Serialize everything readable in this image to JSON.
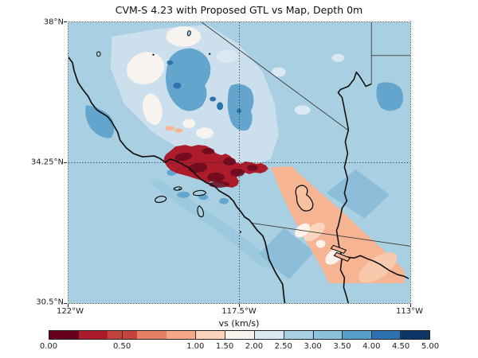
{
  "title": "CVM-S 4.23 with Proposed GTL vs Map, Depth 0m",
  "axes": {
    "y_ticks": [
      "38°N",
      "34.25°N",
      "30.5°N"
    ],
    "x_ticks": [
      "122°W",
      "117.5°W",
      "113°W"
    ]
  },
  "colorbar": {
    "label": "vs (km/s)",
    "tick_labels": [
      "0.00",
      "0.50",
      "1.00",
      "1.50",
      "2.00",
      "2.50",
      "3.00",
      "3.50",
      "4.00",
      "4.50",
      "5.00"
    ],
    "tick_values": [
      0,
      0.5,
      1,
      1.5,
      2,
      2.5,
      3,
      3.5,
      4,
      4.5,
      5
    ],
    "boundaries": [
      0,
      0.2,
      0.4,
      0.6,
      0.8,
      1.0,
      1.5,
      2.0,
      2.5,
      3.0,
      3.5,
      4.0,
      4.5,
      5.0
    ],
    "segment_colors": [
      "#67001f",
      "#ab1b2b",
      "#c5433e",
      "#e58063",
      "#f4a886",
      "#fad3ba",
      "#f8f2ec",
      "#dde9f1",
      "#a9cfe2",
      "#8ec1dc",
      "#569fc9",
      "#2c70b0",
      "#0b3666"
    ],
    "outline_color": "#222222"
  },
  "map": {
    "background_color": "#a9cfe2",
    "region_colors": {
      "pale_inland": "#cbdfec",
      "white_patches": "#f7f3ee",
      "medium_blue_blobs": "#64a5cd",
      "dark_blue_spots": "#2e72ae",
      "blue_tiles": "#8cbeda",
      "low_velocity_basin_red": "#ac1c2b",
      "basin_maroon_mottle": "#6b0a20",
      "salton_trough_salmon": "#f6b493",
      "coastline": "#111111",
      "state_borders": "#3a3a3a"
    },
    "line_features": [
      "coastline",
      "california-nevada-border",
      "nevada-utah-border",
      "utah-arizona-border",
      "us-mexico-border",
      "colorado-river",
      "channel-islands",
      "salton-sea-outline"
    ],
    "gridlines": {
      "horizontal_at": "34.25°N",
      "vertical_at": "117.5°W",
      "style": "dotted"
    }
  },
  "chart_data": {
    "type": "heatmap",
    "title": "CVM-S 4.23 with Proposed GTL vs Map, Depth 0m",
    "colorbar_label": "vs (km/s)",
    "value_range": [
      0,
      5
    ],
    "colorbar_tick_values": [
      0,
      0.5,
      1,
      1.5,
      2,
      2.5,
      3,
      3.5,
      4,
      4.5,
      5
    ],
    "colorbar_boundaries": [
      0,
      0.2,
      0.4,
      0.6,
      0.8,
      1.0,
      1.5,
      2.0,
      2.5,
      3.0,
      3.5,
      4.0,
      4.5,
      5.0
    ],
    "x_axis": {
      "tick_labels": [
        "122°W",
        "117.5°W",
        "113°W"
      ],
      "range_deg_west": [
        122,
        113
      ]
    },
    "y_axis": {
      "tick_labels": [
        "38°N",
        "34.25°N",
        "30.5°N"
      ],
      "range_deg_north": [
        30.5,
        38
      ]
    },
    "grid": "dotted gridlines at 117.5°W and 34.25°N",
    "legend_position": "horizontal colorbar below map",
    "regions": [
      {
        "name": "ocean-and-default-background",
        "approx_vs_km_s": 3.0
      },
      {
        "name": "los-angeles-basin-low-velocity-blob",
        "approx_vs_km_s": 0.3
      },
      {
        "name": "basin-maroon-mottling",
        "approx_vs_km_s": 0.1
      },
      {
        "name": "salton-trough-imperial-valley-band",
        "approx_vs_km_s": 0.9
      },
      {
        "name": "mojave-and-central-valley-pale-patches",
        "approx_vs_km_s": 1.8
      },
      {
        "name": "sierra-nevada-medium-blue-blobs",
        "approx_vs_km_s": 3.7
      },
      {
        "name": "dark-blue-high-velocity-spots",
        "approx_vs_km_s": 4.2
      },
      {
        "name": "rotated-blue-tiles-flanking-salton-band",
        "approx_vs_km_s": 3.4
      }
    ]
  }
}
